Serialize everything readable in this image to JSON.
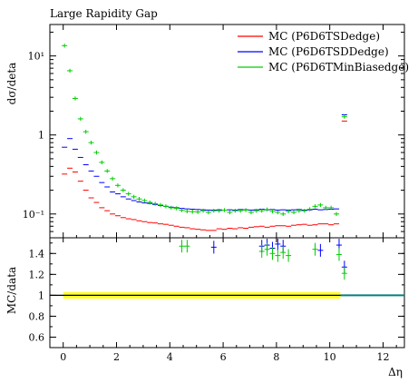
{
  "chart_data": [
    {
      "type": "scatter",
      "title": "Large Rapidity Gap",
      "ylabel": "dσ/deta",
      "xlabel": "",
      "y_scale": "log",
      "ylim": [
        0.05,
        25
      ],
      "xlim": [
        -0.5,
        12.8
      ],
      "x_ticks": [
        0,
        2,
        4,
        6,
        8,
        10,
        12
      ],
      "y_ticks": [
        {
          "value": 10,
          "label": "10¹"
        },
        {
          "value": 1,
          "label": "1"
        },
        {
          "value": 0.1,
          "label": "10⁻¹"
        }
      ],
      "legend_position": "top-right",
      "x": [
        0.05,
        0.25,
        0.45,
        0.65,
        0.85,
        1.05,
        1.25,
        1.45,
        1.65,
        1.85,
        2.05,
        2.25,
        2.45,
        2.65,
        2.85,
        3.05,
        3.25,
        3.45,
        3.65,
        3.85,
        4.05,
        4.25,
        4.45,
        4.65,
        4.85,
        5.05,
        5.25,
        5.45,
        5.65,
        5.85,
        6.05,
        6.25,
        6.45,
        6.65,
        6.85,
        7.05,
        7.25,
        7.45,
        7.65,
        7.85,
        8.05,
        8.25,
        8.45,
        8.65,
        8.85,
        9.05,
        9.25,
        9.45,
        9.65,
        9.85,
        10.05,
        10.25,
        10.55
      ],
      "series": [
        {
          "name": "MC (P6D6TSDedge)",
          "color": "#ff0000",
          "values": [
            0.32,
            0.38,
            0.34,
            0.26,
            0.2,
            0.16,
            0.14,
            0.12,
            0.11,
            0.1,
            0.095,
            0.09,
            0.087,
            0.085,
            0.082,
            0.08,
            0.078,
            0.077,
            0.075,
            0.074,
            0.072,
            0.07,
            0.068,
            0.067,
            0.065,
            0.064,
            0.063,
            0.062,
            0.062,
            0.065,
            0.064,
            0.066,
            0.065,
            0.067,
            0.066,
            0.068,
            0.069,
            0.07,
            0.068,
            0.07,
            0.071,
            0.071,
            0.07,
            0.072,
            0.073,
            0.074,
            0.072,
            0.073,
            0.075,
            0.075,
            0.073,
            0.075,
            1.5
          ]
        },
        {
          "name": "MC (P6D6TSDDedge)",
          "color": "#0000ff",
          "values": [
            0.7,
            0.9,
            0.66,
            0.52,
            0.42,
            0.35,
            0.3,
            0.25,
            0.22,
            0.19,
            0.18,
            0.165,
            0.155,
            0.148,
            0.142,
            0.138,
            0.136,
            0.132,
            0.128,
            0.125,
            0.122,
            0.12,
            0.118,
            0.116,
            0.115,
            0.114,
            0.113,
            0.112,
            0.112,
            0.113,
            0.112,
            0.113,
            0.112,
            0.114,
            0.113,
            0.112,
            0.113,
            0.115,
            0.113,
            0.114,
            0.112,
            0.113,
            0.112,
            0.113,
            0.114,
            0.112,
            0.113,
            0.115,
            0.113,
            0.114,
            0.115,
            0.116,
            1.8
          ]
        },
        {
          "name": "MC (P6D6TMinBiasedge)",
          "color": "#00cc00",
          "values": [
            13.5,
            6.5,
            2.9,
            1.6,
            1.1,
            0.8,
            0.6,
            0.45,
            0.35,
            0.28,
            0.23,
            0.2,
            0.18,
            0.165,
            0.155,
            0.148,
            0.14,
            0.135,
            0.13,
            0.125,
            0.12,
            0.118,
            0.112,
            0.108,
            0.107,
            0.106,
            0.11,
            0.105,
            0.11,
            0.11,
            0.112,
            0.105,
            0.11,
            0.11,
            0.112,
            0.105,
            0.11,
            0.11,
            0.114,
            0.108,
            0.105,
            0.1,
            0.108,
            0.105,
            0.11,
            0.11,
            0.115,
            0.125,
            0.13,
            0.12,
            0.12,
            0.1,
            1.7
          ]
        }
      ]
    },
    {
      "type": "scatter",
      "title": "",
      "ylabel": "MC/data",
      "xlabel": "Δη",
      "ylim": [
        0.5,
        1.55
      ],
      "xlim": [
        -0.5,
        12.8
      ],
      "x_ticks": [
        0,
        2,
        4,
        6,
        8,
        10,
        12
      ],
      "y_ticks": [
        0.6,
        0.8,
        1,
        1.2,
        1.4
      ],
      "reference_line": 1,
      "reference_band": {
        "x_from": 0,
        "x_to": 10.4,
        "low": 0.985,
        "high": 1.015,
        "color": "#ffff33"
      },
      "x": [
        4.45,
        4.65,
        5.65,
        7.45,
        7.65,
        7.85,
        8.05,
        8.25,
        8.45,
        9.45,
        9.65,
        10.35,
        10.55
      ],
      "series": [
        {
          "name": "MC (P6D6TSDDedge)",
          "color": "#0000ff",
          "values": [
            null,
            null,
            1.46,
            1.47,
            1.48,
            1.45,
            1.49,
            1.47,
            null,
            null,
            1.43,
            1.48,
            1.27
          ]
        },
        {
          "name": "MC (P6D6TMinBiasedge)",
          "color": "#00cc00",
          "values": [
            1.47,
            1.47,
            null,
            1.42,
            1.44,
            1.4,
            1.38,
            1.41,
            1.38,
            1.44,
            null,
            1.39,
            1.21
          ]
        }
      ]
    }
  ]
}
